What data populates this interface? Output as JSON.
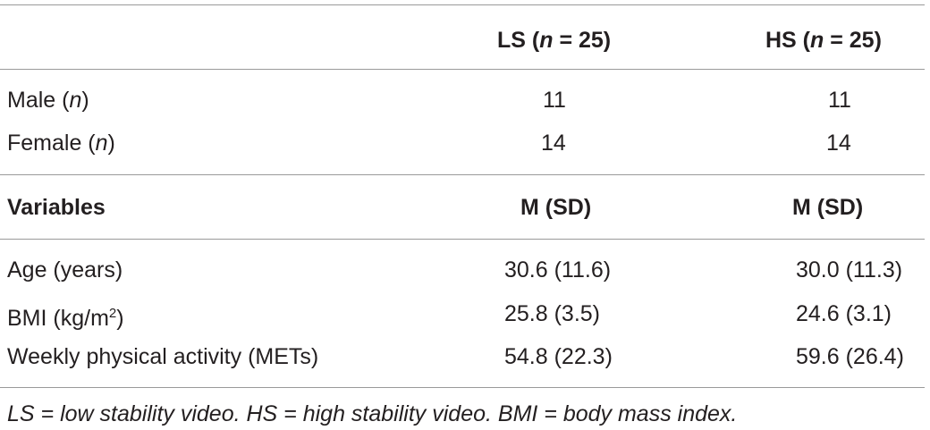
{
  "table": {
    "header": [
      {
        "prefix": "LS (",
        "italic": "n",
        "suffix": " = 25)"
      },
      {
        "prefix": "HS (",
        "italic": "n",
        "suffix": " = 25)"
      }
    ],
    "count_rows": [
      {
        "label": {
          "prefix": "Male (",
          "italic": "n",
          "suffix": ")"
        },
        "values": [
          11,
          11
        ]
      },
      {
        "label": {
          "prefix": "Female (",
          "italic": "n",
          "suffix": ")"
        },
        "values": [
          14,
          14
        ]
      }
    ],
    "subheader": {
      "label": "Variables",
      "columns": [
        "M (SD)",
        "M (SD)"
      ]
    },
    "rows": [
      {
        "label": {
          "prefix": "Age (years)"
        },
        "values": [
          "30.6 (11.6)",
          "30.0 (11.3)"
        ]
      },
      {
        "label": {
          "prefix": "BMI (kg/m",
          "sup": "2",
          "suffix": ")"
        },
        "values": [
          "25.8 (3.5)",
          "24.6 (3.1)"
        ]
      },
      {
        "label": {
          "prefix": "Weekly physical activity (METs)"
        },
        "values": [
          "54.8 (22.3)",
          "59.6 (26.4)"
        ]
      }
    ],
    "footnote": "LS = low stability video. HS = high stability video. BMI = body mass index."
  }
}
